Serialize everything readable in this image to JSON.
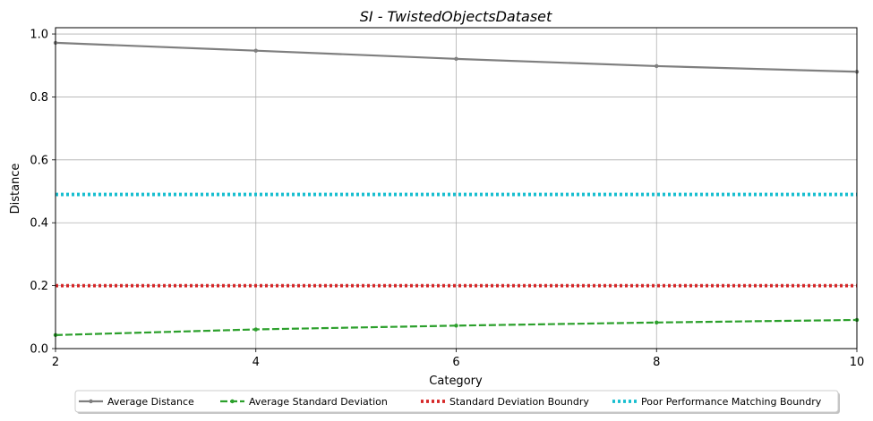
{
  "chart_data": {
    "type": "line",
    "title": "SI - TwistedObjectsDataset",
    "xlabel": "Category",
    "ylabel": "Distance",
    "xlim": [
      2,
      10
    ],
    "ylim": [
      0,
      1.02
    ],
    "xticks": [
      2,
      4,
      6,
      8,
      10
    ],
    "yticks": [
      0.0,
      0.2,
      0.4,
      0.6,
      0.8,
      1.0
    ],
    "xtick_labels": [
      "2",
      "4",
      "6",
      "8",
      "10"
    ],
    "ytick_labels": [
      "0.0",
      "0.2",
      "0.4",
      "0.6",
      "0.8",
      "1.0"
    ],
    "grid": true,
    "legend_position": "bottom-center",
    "series": [
      {
        "name": "Average Distance",
        "color": "#7f7f7f",
        "style": "solid",
        "marker": "point",
        "x": [
          2,
          4,
          6,
          8,
          10
        ],
        "y": [
          0.972,
          0.947,
          0.921,
          0.898,
          0.88
        ]
      },
      {
        "name": "Average Standard Deviation",
        "color": "#2ca02c",
        "style": "dashed",
        "marker": "point",
        "x": [
          2,
          4,
          6,
          8,
          10
        ],
        "y": [
          0.043,
          0.061,
          0.073,
          0.083,
          0.091
        ]
      },
      {
        "name": "Standard Deviation Boundry",
        "color": "#d62728",
        "style": "dotted",
        "marker": "none",
        "x": [
          2,
          10
        ],
        "y": [
          0.2,
          0.2
        ]
      },
      {
        "name": "Poor Performance Matching Boundry",
        "color": "#17becf",
        "style": "dotted",
        "marker": "none",
        "x": [
          2,
          10
        ],
        "y": [
          0.49,
          0.49
        ]
      }
    ]
  }
}
